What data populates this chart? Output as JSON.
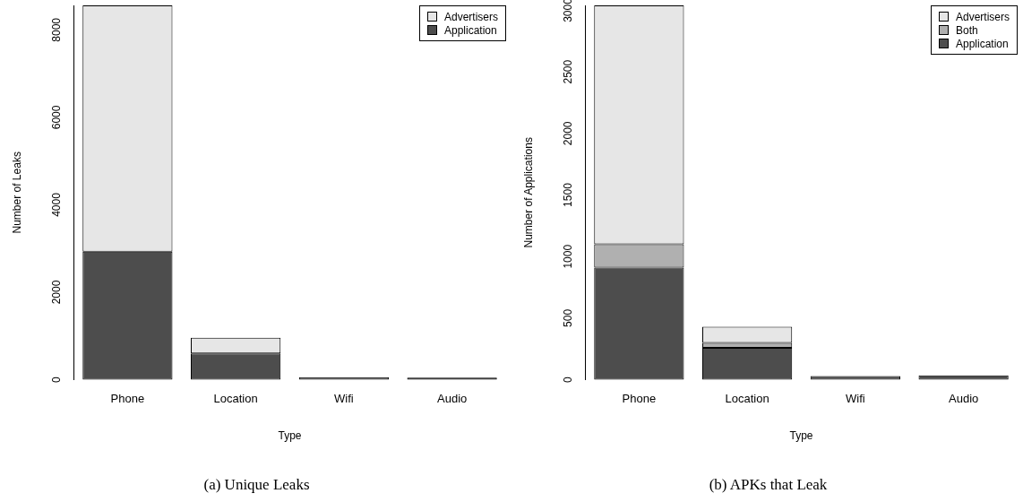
{
  "chart_data": [
    {
      "type": "bar",
      "title": "(a) Unique Leaks",
      "xlabel": "Type",
      "ylabel": "Number of Leaks",
      "categories": [
        "Phone",
        "Location",
        "Wifi",
        "Audio"
      ],
      "stacked": true,
      "series": [
        {
          "name": "Application",
          "color": "#4d4d4d",
          "values": [
            2930,
            600,
            60,
            50
          ]
        },
        {
          "name": "Advertisers",
          "color": "#e6e6e6",
          "values": [
            5630,
            360,
            0,
            0
          ]
        }
      ],
      "ylim": [
        0,
        8560
      ],
      "yticks": [
        0,
        2000,
        4000,
        6000,
        8000
      ],
      "grid": false,
      "legend": "top right"
    },
    {
      "type": "bar",
      "title": "(b) APKs that Leak",
      "xlabel": "Type",
      "ylabel": "Number of Applications",
      "categories": [
        "Phone",
        "Location",
        "Wifi",
        "Audio"
      ],
      "stacked": true,
      "series": [
        {
          "name": "Application",
          "color": "#4d4d4d",
          "values": [
            910,
            260,
            30,
            35
          ]
        },
        {
          "name": "Both",
          "color": "#b0b0b0",
          "values": [
            190,
            40,
            0,
            0
          ]
        },
        {
          "name": "Advertisers",
          "color": "#e6e6e6",
          "values": [
            1940,
            130,
            0,
            0
          ]
        }
      ],
      "ylim": [
        0,
        3040
      ],
      "yticks": [
        0,
        500,
        1000,
        1500,
        2000,
        2500,
        3000
      ],
      "grid": false,
      "legend": "top right"
    }
  ]
}
